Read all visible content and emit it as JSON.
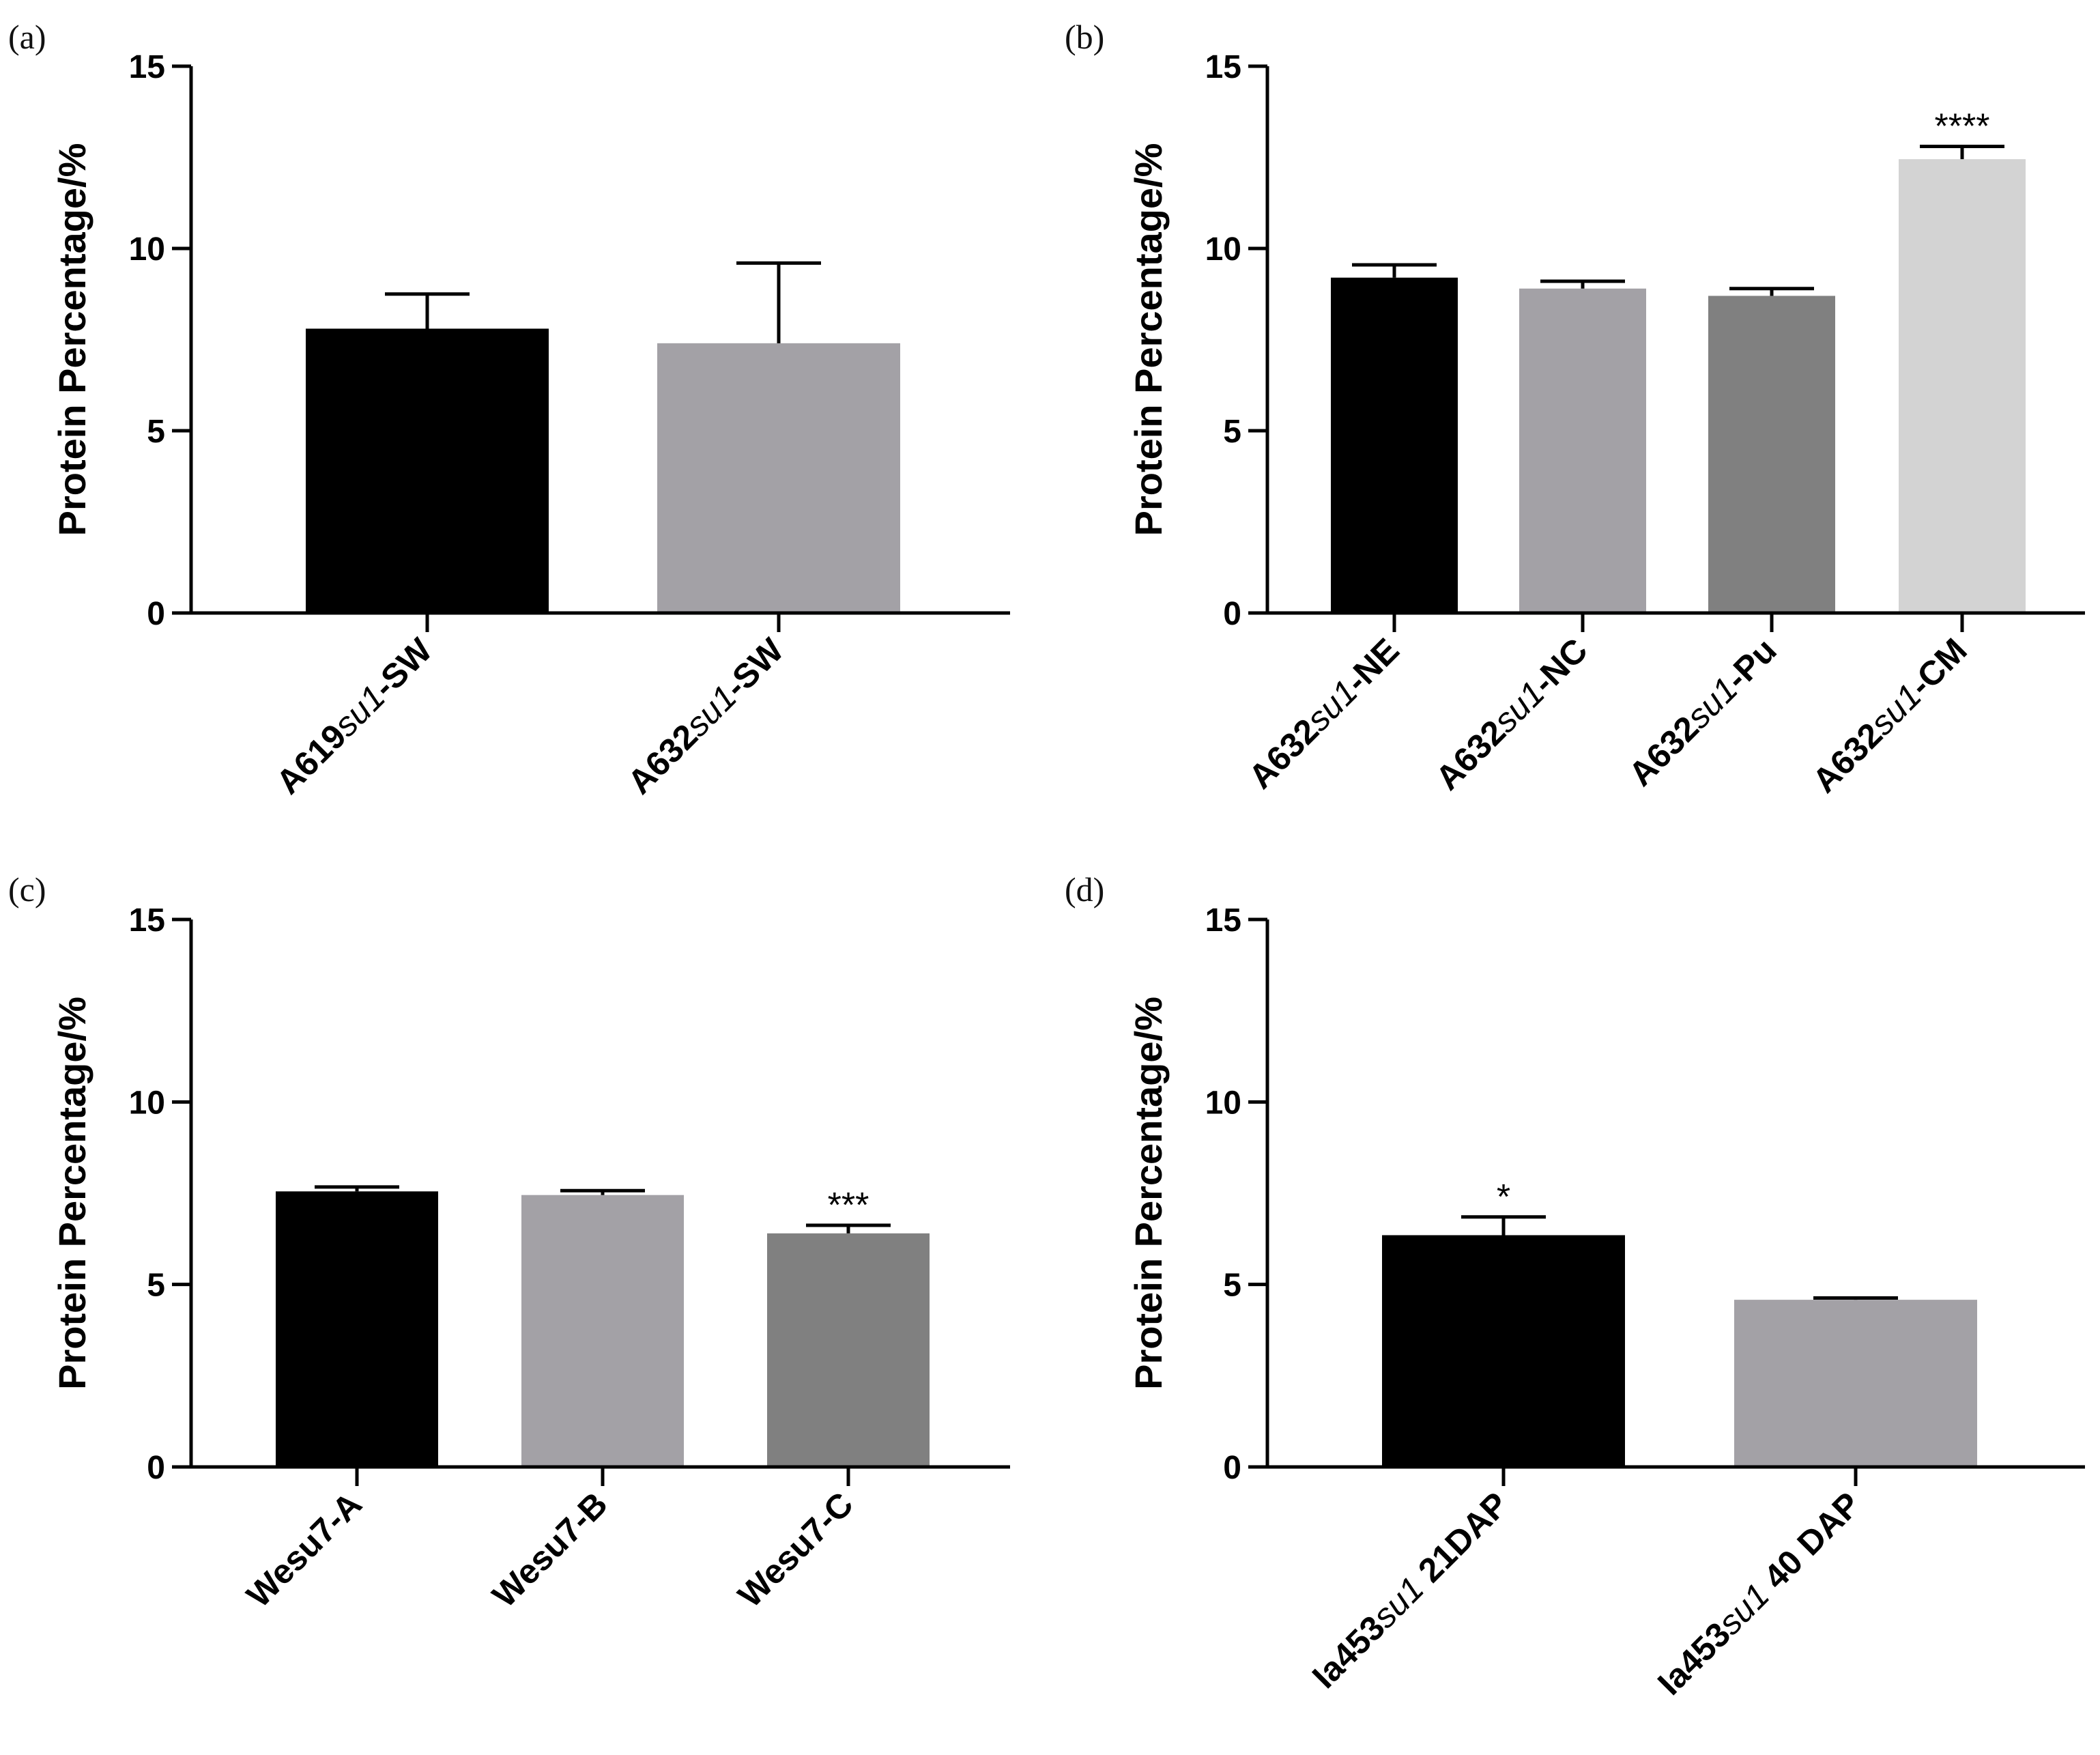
{
  "chart_data": [
    {
      "type": "bar",
      "panel": "(a)",
      "ylabel": "Protein Percentage/%",
      "ylim": [
        0,
        15
      ],
      "yticks": [
        0,
        5,
        10,
        15
      ],
      "grid": false,
      "colors": [
        "#000000",
        "#a3a1a6"
      ],
      "categories": [
        {
          "prefix": "A619",
          "gene": "su1",
          "suffix": "-SW"
        },
        {
          "prefix": "A632",
          "gene": "su1",
          "suffix": "-SW"
        }
      ],
      "values": [
        7.8,
        7.4
      ],
      "errors": [
        0.95,
        2.2
      ],
      "significance": [
        "",
        ""
      ]
    },
    {
      "type": "bar",
      "panel": "(b)",
      "ylabel": "Protein Percentage/%",
      "ylim": [
        0,
        15
      ],
      "yticks": [
        0,
        5,
        10,
        15
      ],
      "grid": false,
      "colors": [
        "#000000",
        "#a3a1a6",
        "#808080",
        "#d3d3d3"
      ],
      "categories": [
        {
          "prefix": "A632",
          "gene": "su1",
          "suffix": "-NE"
        },
        {
          "prefix": "A632",
          "gene": "su1",
          "suffix": "-NC"
        },
        {
          "prefix": "A632",
          "gene": "su1",
          "suffix": "-Pu"
        },
        {
          "prefix": "A632",
          "gene": "su1",
          "suffix": "-CM"
        }
      ],
      "values": [
        9.2,
        8.9,
        8.7,
        12.45
      ],
      "errors": [
        0.35,
        0.2,
        0.2,
        0.35
      ],
      "significance": [
        "",
        "",
        "",
        "****"
      ]
    },
    {
      "type": "bar",
      "panel": "(c)",
      "ylabel": "Protein Percentage/%",
      "ylim": [
        0,
        15
      ],
      "yticks": [
        0,
        5,
        10,
        15
      ],
      "grid": false,
      "colors": [
        "#000000",
        "#a3a1a6",
        "#808080"
      ],
      "categories": [
        {
          "prefix": "Wesu7-A",
          "gene": "",
          "suffix": ""
        },
        {
          "prefix": "Wesu7-B",
          "gene": "",
          "suffix": ""
        },
        {
          "prefix": "Wesu7-C",
          "gene": "",
          "suffix": ""
        }
      ],
      "values": [
        7.55,
        7.45,
        6.4
      ],
      "errors": [
        0.12,
        0.12,
        0.22
      ],
      "significance": [
        "",
        "",
        "***"
      ]
    },
    {
      "type": "bar",
      "panel": "(d)",
      "ylabel": "Protein Percentage/%",
      "ylim": [
        0,
        15
      ],
      "yticks": [
        0,
        5,
        10,
        15
      ],
      "grid": false,
      "colors": [
        "#000000",
        "#a3a1a6"
      ],
      "categories": [
        {
          "prefix": "Ia453",
          "gene": "su1",
          "suffix": " 21DAP"
        },
        {
          "prefix": "Ia453",
          "gene": "su1",
          "suffix": " 40 DAP"
        }
      ],
      "values": [
        6.35,
        4.58
      ],
      "errors": [
        0.5,
        0.05
      ],
      "significance": [
        "*",
        ""
      ]
    }
  ]
}
